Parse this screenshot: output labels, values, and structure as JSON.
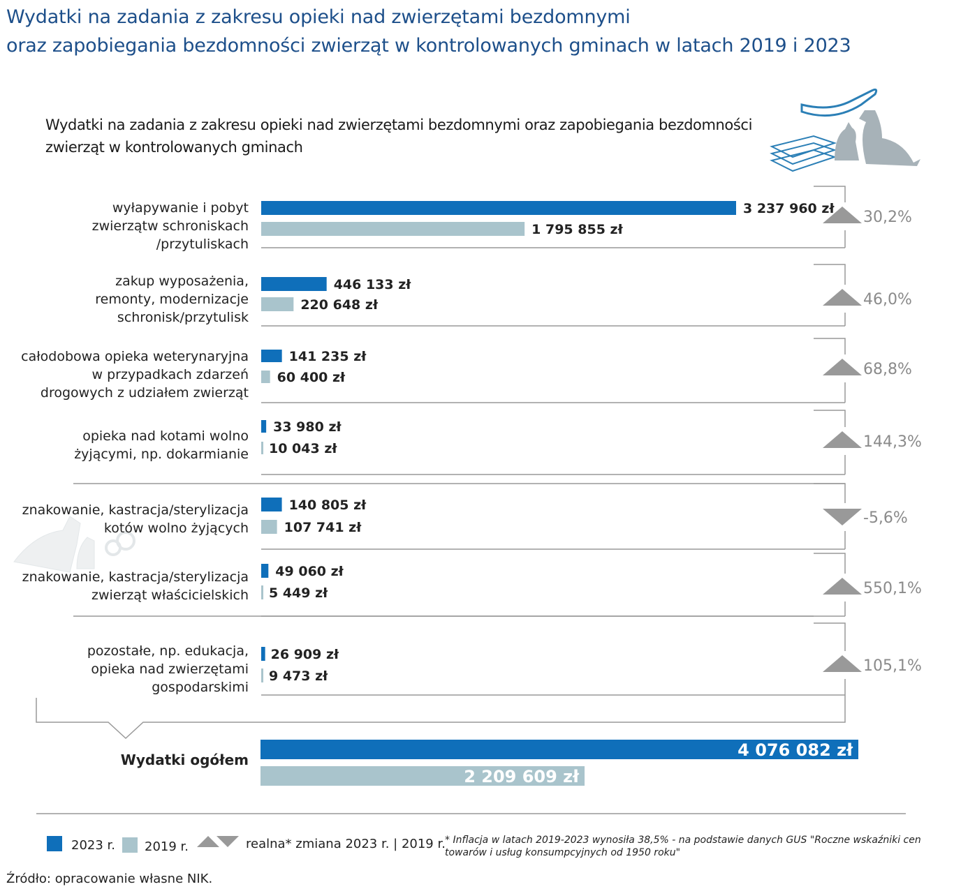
{
  "header": {
    "title_line1": "Wydatki na zadania z zakresu opieki nad zwierzętami bezdomnymi",
    "title_line2": "oraz zapobiegania bezdomności zwierząt w kontrolowanych gminach w latach 2019 i 2023"
  },
  "colors": {
    "y2023": "#0f6fba",
    "y2019": "#a9c4cc",
    "triangle": "#999999",
    "title": "#1d4f8a"
  },
  "chart_data": {
    "type": "bar",
    "orientation": "horizontal",
    "title": "Wydatki na zadania z zakresu opieki nad zwierzętami bezdomnymi oraz zapobiegania bezdomności zwierząt w kontrolowanych gminach",
    "categories": [
      [
        "wyłapywanie i pobyt",
        "zwierzątw schroniskach",
        "/przytuliskach"
      ],
      [
        "zakup wyposażenia,",
        "remonty, modernizacje",
        "schronisk/przytulisk"
      ],
      [
        "całodobowa opieka weterynaryjna",
        "w przypadkach zdarzeń",
        "drogowych z udziałem zwierząt"
      ],
      [
        "opieka nad kotami wolno",
        "żyjącymi, np. dokarmianie"
      ],
      [
        "znakowanie, kastracja/sterylizacja",
        "kotów wolno żyjących"
      ],
      [
        "znakowanie, kastracja/sterylizacja",
        "zwierząt właścicielskich"
      ],
      [
        "pozostałe, np. edukacja,",
        "opieka nad zwierzętami",
        "gospodarskimi"
      ]
    ],
    "series": [
      {
        "name": "2023 r.",
        "values": [
          3237960,
          446133,
          141235,
          33980,
          140805,
          49060,
          26909
        ],
        "labels": [
          "3 237 960 zł",
          "446 133 zł",
          "141 235 zł",
          "33 980 zł",
          "140 805 zł",
          "49 060 zł",
          "26 909 zł"
        ]
      },
      {
        "name": "2019 r.",
        "values": [
          1795855,
          220648,
          60400,
          10043,
          107741,
          5449,
          9473
        ],
        "labels": [
          "1 795 855 zł",
          "220 648 zł",
          "60 400 zł",
          "10 043 zł",
          "107 741 zł",
          "5 449 zł",
          "9 473 zł"
        ]
      }
    ],
    "real_change": [
      {
        "direction": "up",
        "label": "30,2%"
      },
      {
        "direction": "up",
        "label": "46,0%"
      },
      {
        "direction": "up",
        "label": "68,8%"
      },
      {
        "direction": "up",
        "label": "144,3%"
      },
      {
        "direction": "down",
        "label": "-5,6%"
      },
      {
        "direction": "up",
        "label": "550,1%"
      },
      {
        "direction": "up",
        "label": "105,1%"
      }
    ],
    "total": {
      "label": "Wydatki ogółem",
      "values": [
        4076082,
        2209609
      ],
      "labels": [
        "4 076 082  zł",
        "2 209 609 zł"
      ]
    },
    "legend": {
      "y2023": "2023 r.",
      "y2019": "2019 r.",
      "change": "realna* zmiana 2023 r. | 2019 r.",
      "placement": "bottom"
    }
  },
  "footnote": {
    "line1": "* Inflacja w latach 2019-2023 wynosiła 38,5% - na podstawie danych GUS  \"Roczne wskaźniki cen",
    "line2": "towarów i usług konsumpcyjnych od 1950 roku\""
  },
  "source": "Źródło: opracowanie własne NIK."
}
